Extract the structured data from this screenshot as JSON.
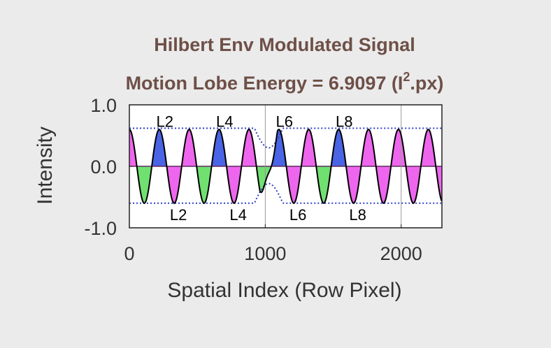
{
  "chart_data": {
    "type": "line",
    "title": "Hilbert Env Modulated Signal",
    "subtitle_prefix": "Motion Lobe Energy = 6.9097  (I",
    "subtitle_sup": "2",
    "subtitle_suffix": ".px)",
    "xlabel": "Spatial Index (Row Pixel)",
    "ylabel": "Intensity",
    "xlim": [
      0,
      2300
    ],
    "ylim": [
      -1.0,
      1.0
    ],
    "xticks": [
      0,
      1000,
      2000
    ],
    "xtick_labels": [
      "0",
      "1000",
      "2000"
    ],
    "yticks": [
      -1.0,
      0.0,
      1.0
    ],
    "ytick_labels": [
      "-1.0",
      "0.0",
      "1.0"
    ],
    "grid": false,
    "vlines": [
      1000,
      2000
    ],
    "signal": {
      "amplitude": 0.6,
      "period_px": 220,
      "phase_zero_x": 0,
      "gap_range": [
        960,
        1090
      ],
      "gap_amplitude": 0.2
    },
    "envelope": {
      "upper": 0.62,
      "lower": -0.6
    },
    "lobes": [
      {
        "index": 1,
        "x_range": [
          0,
          55
        ],
        "sign": 1
      },
      {
        "index": 2,
        "x_range": [
          220,
          330
        ],
        "sign": 1
      },
      {
        "index": 3,
        "x_range": [
          440,
          550
        ],
        "sign": 1
      },
      {
        "index": 4,
        "x_range": [
          660,
          770
        ],
        "sign": 1
      },
      {
        "index": 5,
        "x_range": [
          880,
          990
        ],
        "sign": 1
      },
      {
        "index": 6,
        "x_range": [
          1100,
          1210
        ],
        "sign": 1
      },
      {
        "index": 7,
        "x_range": [
          1320,
          1430
        ],
        "sign": 1
      },
      {
        "index": 8,
        "x_range": [
          1540,
          1650
        ],
        "sign": 1
      },
      {
        "index": 9,
        "x_range": [
          1760,
          1870
        ],
        "sign": 1
      },
      {
        "index": 10,
        "x_range": [
          1980,
          2090
        ],
        "sign": 1
      },
      {
        "index": 11,
        "x_range": [
          2200,
          2300
        ],
        "sign": 1
      }
    ],
    "lobe_colors": {
      "highlight_pos": "#4a64e6",
      "highlight_neg": "#70e070",
      "default": "#ee66ee"
    },
    "highlighted_lobes": [
      "L2",
      "L4",
      "L6",
      "L8"
    ],
    "labels_top": [
      {
        "text": "L2",
        "x": 220
      },
      {
        "text": "L4",
        "x": 660
      },
      {
        "text": "L6",
        "x": 1100
      },
      {
        "text": "L8",
        "x": 1540
      }
    ],
    "labels_bottom": [
      {
        "text": "L2",
        "x": 330
      },
      {
        "text": "L4",
        "x": 770
      },
      {
        "text": "L6",
        "x": 1210
      },
      {
        "text": "L8",
        "x": 1650
      }
    ],
    "colors": {
      "signal_line": "#000000",
      "envelope": "#2f3fc8",
      "zero_line": "#5a2a5a",
      "title": "#6e5048",
      "background": "#ebebeb",
      "plot_bg": "#ffffff"
    }
  }
}
